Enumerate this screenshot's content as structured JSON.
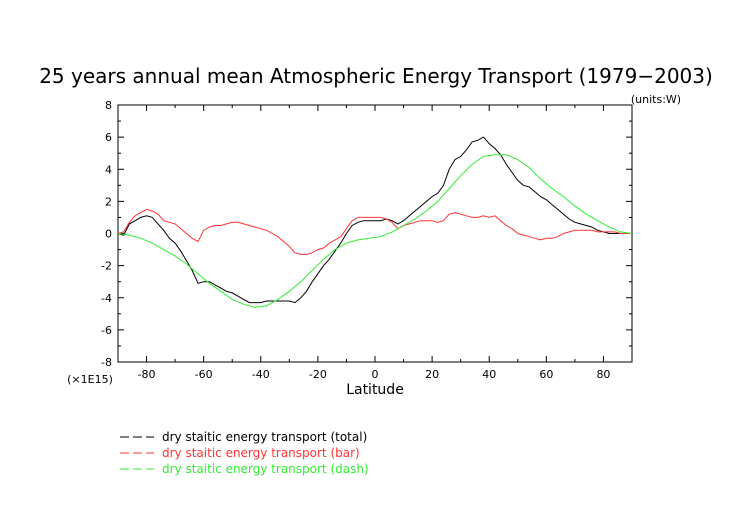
{
  "chart_data": {
    "type": "line",
    "title": "25 years annual mean Atmospheric Energy Transport (1979−2003)",
    "units": "(units:W)",
    "multiplier": "(×1E15)",
    "xlabel": "Latitude",
    "ylabel": "",
    "xlim": [
      -90,
      90
    ],
    "ylim": [
      -8,
      8
    ],
    "xticks": [
      -80,
      -60,
      -40,
      -20,
      0,
      20,
      40,
      60,
      80
    ],
    "yticks": [
      -8,
      -6,
      -4,
      -2,
      0,
      2,
      4,
      6,
      8
    ],
    "grid": false,
    "legend_position": "bottom-left",
    "series": [
      {
        "name": "dry staitic energy transport (total)",
        "color": "#000000",
        "x": [
          -90,
          -88,
          -86,
          -84,
          -82,
          -80,
          -78,
          -76,
          -74,
          -72,
          -70,
          -68,
          -66,
          -64,
          -62,
          -60,
          -58,
          -56,
          -54,
          -52,
          -50,
          -48,
          -46,
          -44,
          -42,
          -40,
          -38,
          -36,
          -34,
          -32,
          -30,
          -28,
          -26,
          -24,
          -22,
          -20,
          -18,
          -16,
          -14,
          -12,
          -10,
          -8,
          -6,
          -4,
          -2,
          0,
          2,
          4,
          6,
          8,
          10,
          12,
          14,
          16,
          18,
          20,
          22,
          24,
          26,
          28,
          30,
          32,
          34,
          36,
          38,
          40,
          42,
          44,
          46,
          48,
          50,
          52,
          54,
          56,
          58,
          60,
          62,
          64,
          66,
          68,
          70,
          72,
          74,
          76,
          78,
          80,
          82,
          84,
          86,
          88,
          90
        ],
        "values": [
          0,
          -0.1,
          0.6,
          0.8,
          1.0,
          1.1,
          1.0,
          0.6,
          0.2,
          -0.3,
          -0.6,
          -1.1,
          -1.7,
          -2.3,
          -3.1,
          -3.0,
          -3.0,
          -3.2,
          -3.4,
          -3.6,
          -3.7,
          -3.9,
          -4.1,
          -4.3,
          -4.3,
          -4.3,
          -4.2,
          -4.2,
          -4.2,
          -4.2,
          -4.2,
          -4.3,
          -4.0,
          -3.6,
          -3.0,
          -2.5,
          -2.0,
          -1.6,
          -1.1,
          -0.6,
          0.0,
          0.5,
          0.7,
          0.8,
          0.8,
          0.8,
          0.8,
          0.9,
          0.8,
          0.6,
          0.8,
          1.1,
          1.4,
          1.7,
          2.0,
          2.3,
          2.5,
          3.0,
          4.0,
          4.6,
          4.8,
          5.2,
          5.7,
          5.8,
          6.0,
          5.6,
          5.3,
          4.9,
          4.3,
          3.8,
          3.3,
          3.0,
          2.9,
          2.6,
          2.3,
          2.1,
          1.8,
          1.5,
          1.2,
          0.9,
          0.7,
          0.6,
          0.5,
          0.4,
          0.2,
          0.1,
          0.0,
          0.0,
          0.0,
          0.0,
          0.0
        ],
        "x_override": [
          -90,
          -88,
          -86,
          -84,
          -82,
          -80,
          -78,
          -76,
          -74,
          -72,
          -70,
          -68,
          -66,
          -64,
          -62,
          -60,
          -58,
          -56,
          -54,
          -52,
          -50,
          -48,
          -46,
          -44,
          -42,
          -40,
          -38,
          -36,
          -34,
          -32,
          -30,
          -28,
          -26,
          -24,
          -22,
          -20,
          -18,
          -16,
          -14,
          -12,
          -10,
          -8,
          -6,
          -4,
          -2,
          0,
          2,
          4,
          6,
          8,
          10,
          12,
          14,
          16,
          18,
          20,
          22,
          24,
          26,
          28,
          30,
          32,
          34,
          36,
          38,
          40,
          42,
          44,
          46,
          48,
          50,
          52,
          54,
          56,
          58,
          60,
          62,
          64,
          66,
          68,
          70,
          72,
          74,
          76,
          78,
          80,
          82,
          84,
          86,
          88,
          90
        ]
      },
      {
        "name": "dry staitic energy transport (bar)",
        "color": "#ff3333",
        "x": [
          -90,
          -88,
          -86,
          -84,
          -82,
          -80,
          -78,
          -76,
          -74,
          -72,
          -70,
          -68,
          -66,
          -64,
          -62,
          -60,
          -58,
          -56,
          -54,
          -52,
          -50,
          -48,
          -46,
          -44,
          -42,
          -40,
          -38,
          -36,
          -34,
          -32,
          -30,
          -28,
          -26,
          -24,
          -22,
          -20,
          -18,
          -16,
          -14,
          -12,
          -10,
          -8,
          -6,
          -4,
          -2,
          0,
          2,
          4,
          6,
          8,
          10,
          12,
          14,
          16,
          18,
          20,
          22,
          24,
          26,
          28,
          30,
          32,
          34,
          36,
          38,
          40,
          42,
          44,
          46,
          48,
          50,
          52,
          54,
          56,
          58,
          60,
          62,
          64,
          66,
          68,
          70,
          72,
          74,
          76,
          78,
          80,
          82,
          84,
          86,
          88,
          90
        ],
        "values": [
          0,
          0.1,
          0.7,
          1.1,
          1.3,
          1.5,
          1.4,
          1.2,
          0.8,
          0.7,
          0.6,
          0.3,
          0.0,
          -0.3,
          -0.5,
          0.2,
          0.4,
          0.5,
          0.5,
          0.6,
          0.7,
          0.7,
          0.6,
          0.5,
          0.4,
          0.3,
          0.2,
          0.0,
          -0.2,
          -0.5,
          -0.8,
          -1.2,
          -1.3,
          -1.3,
          -1.2,
          -1.0,
          -0.9,
          -0.6,
          -0.4,
          -0.2,
          0.3,
          0.8,
          1.0,
          1.0,
          1.0,
          1.0,
          1.0,
          0.9,
          0.7,
          0.3,
          0.5,
          0.6,
          0.7,
          0.8,
          0.8,
          0.8,
          0.7,
          0.8,
          1.2,
          1.3,
          1.2,
          1.1,
          1.0,
          1.0,
          1.1,
          1.0,
          1.1,
          0.8,
          0.5,
          0.3,
          0.0,
          -0.1,
          -0.2,
          -0.3,
          -0.4,
          -0.3,
          -0.3,
          -0.2,
          0.0,
          0.1,
          0.2,
          0.2,
          0.2,
          0.2,
          0.1,
          0.1,
          0.1,
          0.1,
          0.0,
          0.0,
          0.0
        ]
      },
      {
        "name": "dry staitic energy transport (dash)",
        "color": "#33ee33",
        "x": [
          -90,
          -86,
          -82,
          -78,
          -74,
          -70,
          -66,
          -62,
          -58,
          -54,
          -50,
          -46,
          -42,
          -38,
          -34,
          -30,
          -26,
          -22,
          -18,
          -14,
          -10,
          -6,
          -2,
          2,
          6,
          10,
          14,
          18,
          22,
          26,
          30,
          34,
          38,
          42,
          46,
          50,
          54,
          58,
          62,
          66,
          70,
          74,
          78,
          82,
          86,
          90
        ],
        "values": [
          0,
          -0.1,
          -0.3,
          -0.6,
          -1.0,
          -1.4,
          -1.9,
          -2.5,
          -3.1,
          -3.6,
          -4.1,
          -4.4,
          -4.6,
          -4.5,
          -4.1,
          -3.6,
          -3.0,
          -2.3,
          -1.6,
          -1.0,
          -0.6,
          -0.4,
          -0.3,
          -0.2,
          0.1,
          0.5,
          0.9,
          1.4,
          2.0,
          2.8,
          3.6,
          4.3,
          4.8,
          4.9,
          4.9,
          4.6,
          4.1,
          3.4,
          2.8,
          2.3,
          1.7,
          1.2,
          0.8,
          0.4,
          0.1,
          0.0
        ]
      }
    ]
  }
}
